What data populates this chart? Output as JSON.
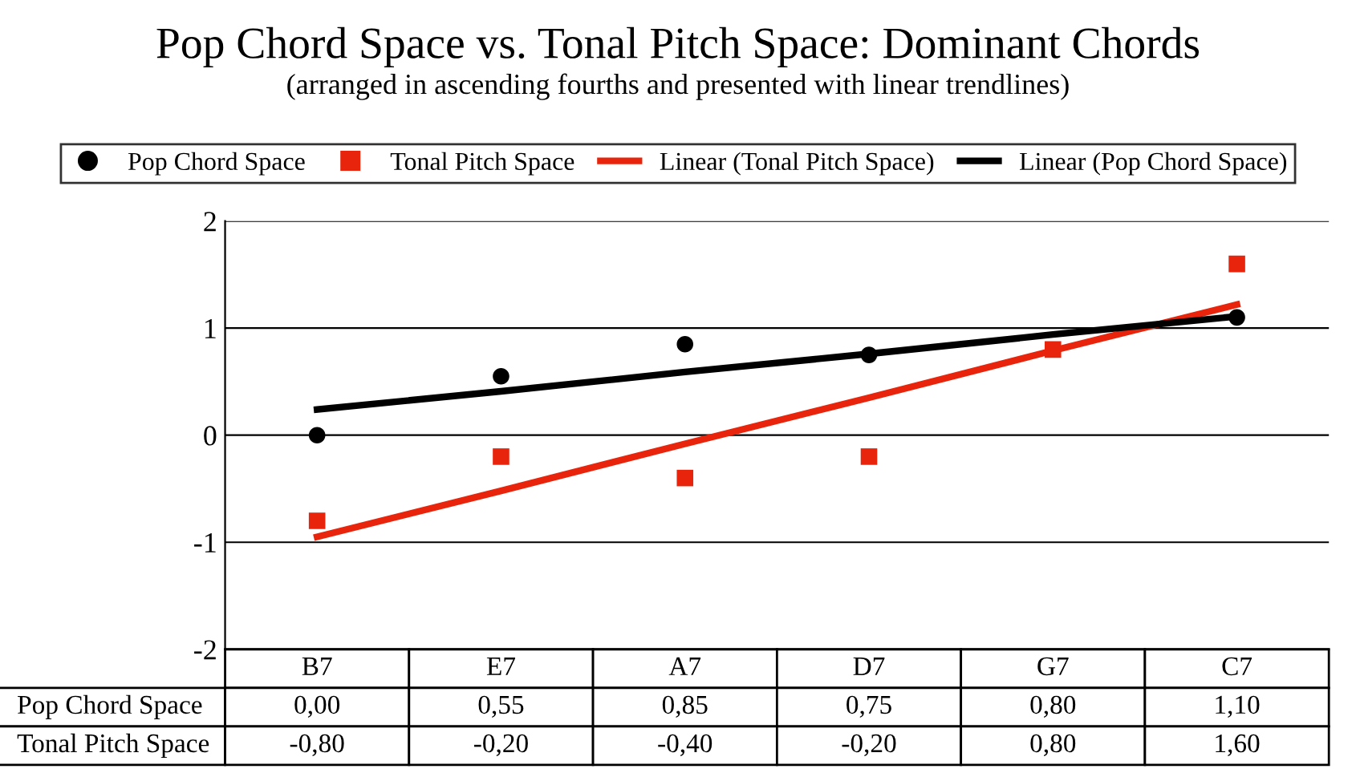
{
  "chart_data": {
    "type": "scatter",
    "title": "Pop Chord Space vs. Tonal Pitch Space: Dominant Chords",
    "subtitle": "(arranged in ascending fourths and presented with linear trendlines)",
    "categories": [
      "B7",
      "E7",
      "A7",
      "D7",
      "G7",
      "C7"
    ],
    "series": [
      {
        "name": "Pop Chord Space",
        "marker": "circle",
        "color": "#000000",
        "values": [
          0.0,
          0.55,
          0.85,
          0.75,
          null,
          1.1
        ],
        "value_labels": [
          "0,00",
          "0,55",
          "0,85",
          "0,75",
          "0,80",
          "1,10"
        ]
      },
      {
        "name": "Tonal Pitch Space",
        "marker": "square",
        "color": "#e8250c",
        "values": [
          -0.8,
          -0.2,
          -0.4,
          -0.2,
          0.8,
          1.6
        ],
        "value_labels": [
          "-0,80",
          "-0,20",
          "-0,40",
          "-0,20",
          "0,80",
          "1,60"
        ]
      },
      {
        "name": "Linear (Tonal Pitch Space)",
        "type": "line",
        "color": "#e8250c",
        "values": [
          -0.95,
          -0.52,
          -0.08,
          0.35,
          0.79,
          1.22
        ]
      },
      {
        "name": "Linear (Pop Chord Space)",
        "type": "line",
        "color": "#000000",
        "values": [
          0.24,
          0.41,
          0.59,
          0.76,
          0.94,
          1.11
        ]
      }
    ],
    "ylim": [
      -2,
      2
    ],
    "yticks": [
      -2,
      -1,
      0,
      1,
      2
    ],
    "grid": "y",
    "legend": "top"
  }
}
